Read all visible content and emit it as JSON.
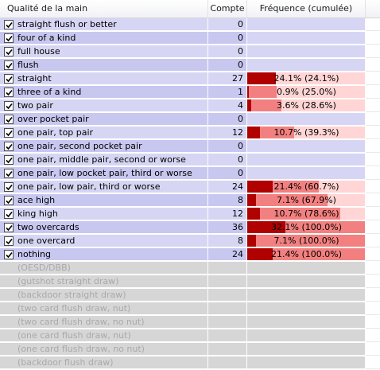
{
  "colors": {
    "row_active": "#d6d6f4",
    "row_inactive": "#d6d6d6",
    "freq_bg_light": "#ffd5d5",
    "freq_cum_fill": "#f38080",
    "freq_ind_fill": "#b00000",
    "freq_empty": "#d6d6f4"
  },
  "header": {
    "name": "Qualité de la main",
    "count": "Compte",
    "freq": "Fréquence (cumulée)"
  },
  "rows": [
    {
      "label": "straight flush or better",
      "checked": true,
      "count": "0",
      "freq_text": "",
      "individual_pct": 0,
      "cumulative_pct": 0
    },
    {
      "label": "four of a kind",
      "checked": true,
      "count": "0",
      "freq_text": "",
      "individual_pct": 0,
      "cumulative_pct": 0
    },
    {
      "label": "full house",
      "checked": true,
      "count": "0",
      "freq_text": "",
      "individual_pct": 0,
      "cumulative_pct": 0
    },
    {
      "label": "flush",
      "checked": true,
      "count": "0",
      "freq_text": "",
      "individual_pct": 0,
      "cumulative_pct": 0
    },
    {
      "label": "straight",
      "checked": true,
      "count": "27",
      "freq_text": "24.1% (24.1%)",
      "individual_pct": 24.1,
      "cumulative_pct": 24.1
    },
    {
      "label": "three of a kind",
      "checked": true,
      "count": "1",
      "freq_text": "0.9% (25.0%)",
      "individual_pct": 0.9,
      "cumulative_pct": 25.0
    },
    {
      "label": "two pair",
      "checked": true,
      "count": "4",
      "freq_text": "3.6% (28.6%)",
      "individual_pct": 3.6,
      "cumulative_pct": 28.6
    },
    {
      "label": "over pocket pair",
      "checked": true,
      "count": "0",
      "freq_text": "",
      "individual_pct": 0,
      "cumulative_pct": 0
    },
    {
      "label": "one pair, top pair",
      "checked": true,
      "count": "12",
      "freq_text": "10.7% (39.3%)",
      "individual_pct": 10.7,
      "cumulative_pct": 39.3
    },
    {
      "label": "one pair, second pocket pair",
      "checked": true,
      "count": "0",
      "freq_text": "",
      "individual_pct": 0,
      "cumulative_pct": 0
    },
    {
      "label": "one pair, middle pair, second or worse",
      "checked": true,
      "count": "0",
      "freq_text": "",
      "individual_pct": 0,
      "cumulative_pct": 0
    },
    {
      "label": "one pair, low pocket pair, third or worse",
      "checked": true,
      "count": "0",
      "freq_text": "",
      "individual_pct": 0,
      "cumulative_pct": 0
    },
    {
      "label": "one pair, low pair, third or worse",
      "checked": true,
      "count": "24",
      "freq_text": "21.4% (60.7%)",
      "individual_pct": 21.4,
      "cumulative_pct": 60.7
    },
    {
      "label": "ace high",
      "checked": true,
      "count": "8",
      "freq_text": "7.1% (67.9%)",
      "individual_pct": 7.1,
      "cumulative_pct": 67.9
    },
    {
      "label": "king high",
      "checked": true,
      "count": "12",
      "freq_text": "10.7% (78.6%)",
      "individual_pct": 10.7,
      "cumulative_pct": 78.6
    },
    {
      "label": "two overcards",
      "checked": true,
      "count": "36",
      "freq_text": "32.1% (100.0%)",
      "individual_pct": 32.1,
      "cumulative_pct": 100.0
    },
    {
      "label": "one overcard",
      "checked": true,
      "count": "8",
      "freq_text": "7.1% (100.0%)",
      "individual_pct": 7.1,
      "cumulative_pct": 100.0
    },
    {
      "label": "nothing",
      "checked": true,
      "count": "24",
      "freq_text": "21.4% (100.0%)",
      "individual_pct": 21.4,
      "cumulative_pct": 100.0
    },
    {
      "label": "(OESD/DBB)",
      "checked": false,
      "count": "",
      "freq_text": "",
      "individual_pct": 0,
      "cumulative_pct": 0
    },
    {
      "label": "(gutshot straight draw)",
      "checked": false,
      "count": "",
      "freq_text": "",
      "individual_pct": 0,
      "cumulative_pct": 0
    },
    {
      "label": "(backdoor straight draw)",
      "checked": false,
      "count": "",
      "freq_text": "",
      "individual_pct": 0,
      "cumulative_pct": 0
    },
    {
      "label": "(two card flush draw, nut)",
      "checked": false,
      "count": "",
      "freq_text": "",
      "individual_pct": 0,
      "cumulative_pct": 0
    },
    {
      "label": "(two card flush draw, no nut)",
      "checked": false,
      "count": "",
      "freq_text": "",
      "individual_pct": 0,
      "cumulative_pct": 0
    },
    {
      "label": "(one card flush draw, nut)",
      "checked": false,
      "count": "",
      "freq_text": "",
      "individual_pct": 0,
      "cumulative_pct": 0
    },
    {
      "label": "(one card flush draw, no nut)",
      "checked": false,
      "count": "",
      "freq_text": "",
      "individual_pct": 0,
      "cumulative_pct": 0
    },
    {
      "label": "(backdoor flush draw)",
      "checked": false,
      "count": "",
      "freq_text": "",
      "individual_pct": 0,
      "cumulative_pct": 0
    }
  ]
}
